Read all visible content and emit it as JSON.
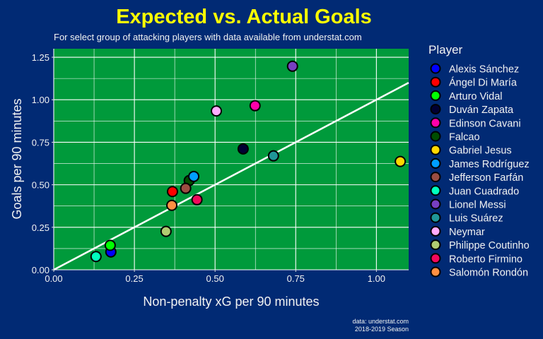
{
  "chart_data": {
    "type": "scatter",
    "title": "Expected vs. Actual Goals",
    "subtitle": "For select group of attacking players with data available from understat.com",
    "xlabel": "Non-penalty xG per 90 minutes",
    "ylabel": "Goals per 90 minutes",
    "xlim": [
      0,
      1.1
    ],
    "ylim": [
      0,
      1.3
    ],
    "xticks": [
      0,
      0.25,
      0.5,
      0.75,
      1.0
    ],
    "xtick_labels": [
      "0.00",
      "0.25",
      "0.50",
      "0.75",
      "1.00"
    ],
    "yticks": [
      0,
      0.25,
      0.5,
      0.75,
      1.0,
      1.25
    ],
    "ytick_labels": [
      "0.00",
      "0.25",
      "0.50",
      "0.75",
      "1.00",
      "1.25"
    ],
    "grid": true,
    "reference_line": {
      "slope": 1,
      "intercept": 0,
      "color": "#ffffff"
    },
    "legend_title": "Player",
    "legend_position": "right",
    "caption": [
      "data: understat.com",
      "2018-2019 Season"
    ],
    "colors": {
      "background": "#012a74",
      "panel": "#009a3b",
      "title": "#ffff00"
    },
    "points": [
      {
        "name": "Alexis Sánchez",
        "x": 0.177,
        "y": 0.105,
        "color": "#0000ff"
      },
      {
        "name": "Ángel Di María",
        "x": 0.368,
        "y": 0.46,
        "color": "#ff0000"
      },
      {
        "name": "Arturo Vidal",
        "x": 0.175,
        "y": 0.144,
        "color": "#00ff00"
      },
      {
        "name": "Duván Zapata",
        "x": 0.587,
        "y": 0.711,
        "color": "#000033"
      },
      {
        "name": "Edinson Cavani",
        "x": 0.624,
        "y": 0.965,
        "color": "#ff00aa"
      },
      {
        "name": "Falcao",
        "x": 0.42,
        "y": 0.525,
        "color": "#004d00"
      },
      {
        "name": "Gabriel Jesus",
        "x": 1.074,
        "y": 0.637,
        "color": "#ffd700"
      },
      {
        "name": "James Rodríguez",
        "x": 0.434,
        "y": 0.549,
        "color": "#009fff"
      },
      {
        "name": "Jefferson Farfán",
        "x": 0.409,
        "y": 0.479,
        "color": "#9a4d42"
      },
      {
        "name": "Juan Cuadrado",
        "x": 0.131,
        "y": 0.078,
        "color": "#00ffbe"
      },
      {
        "name": "Lionel Messi",
        "x": 0.74,
        "y": 1.197,
        "color": "#783fc1"
      },
      {
        "name": "Luis Suárez",
        "x": 0.681,
        "y": 0.67,
        "color": "#1f9698"
      },
      {
        "name": "Neymar",
        "x": 0.504,
        "y": 0.934,
        "color": "#ffacfd"
      },
      {
        "name": "Philippe Coutinho",
        "x": 0.348,
        "y": 0.226,
        "color": "#b1cc71"
      },
      {
        "name": "Roberto Firmino",
        "x": 0.444,
        "y": 0.412,
        "color": "#f1085c"
      },
      {
        "name": "Salomón Rondón",
        "x": 0.366,
        "y": 0.379,
        "color": "#fe8f42"
      }
    ]
  }
}
